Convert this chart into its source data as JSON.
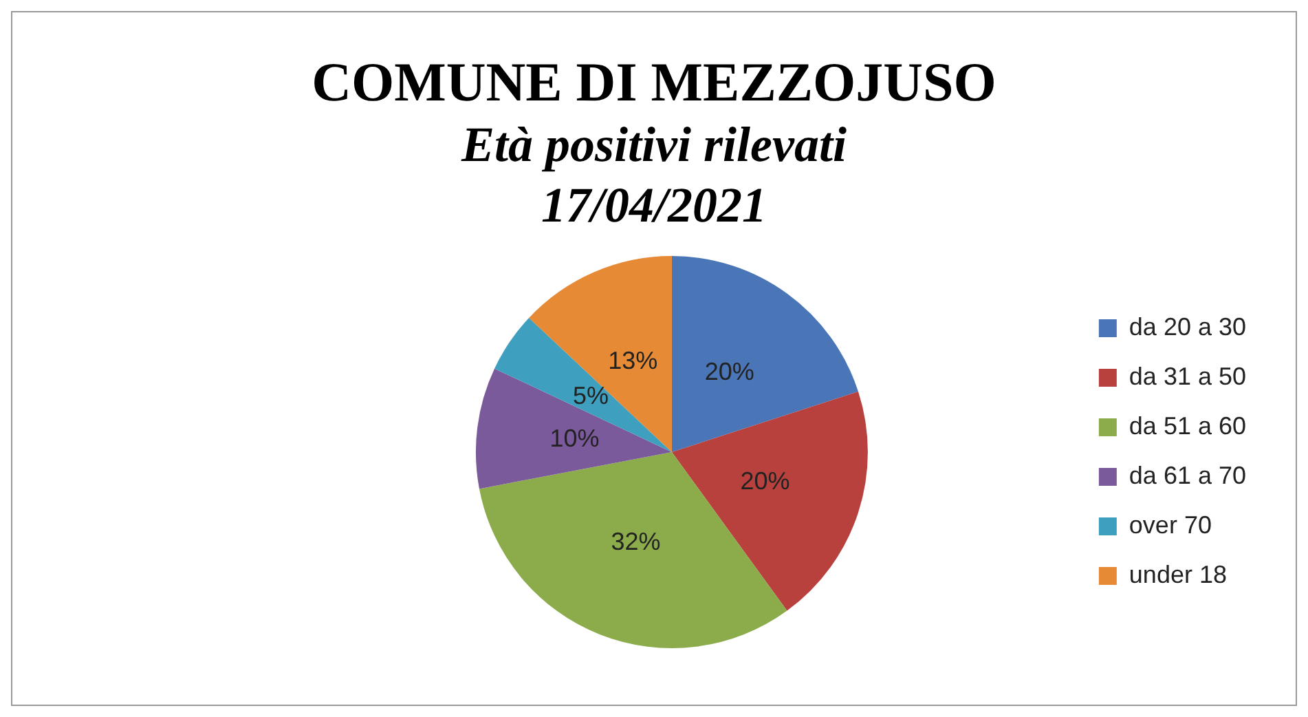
{
  "chart_data": {
    "type": "pie",
    "title": "COMUNE DI MEZZOJUSO",
    "subtitle": "Età positivi rilevati",
    "annotations": [
      "17/04/2021"
    ],
    "categories": [
      "da 20 a 30",
      "da 31 a 50",
      "da 51 a 60",
      "da 61 a 70",
      "over 70",
      "under 18"
    ],
    "values": [
      20,
      20,
      32,
      10,
      5,
      13
    ],
    "value_labels": [
      "20%",
      "20%",
      "32%",
      "10%",
      "5%",
      "13%"
    ],
    "colors": [
      "#4a76b8",
      "#b8413e",
      "#8cac4b",
      "#7a5a9a",
      "#3f9fbf",
      "#e68a35"
    ],
    "legend": "right"
  }
}
